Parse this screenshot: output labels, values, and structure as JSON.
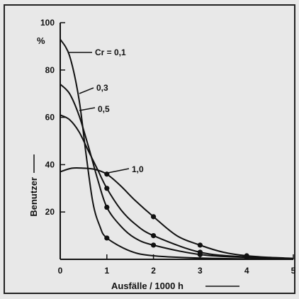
{
  "chart_data": {
    "type": "line",
    "xlabel": "Ausfälle / 1000 h",
    "ylabel": "Benutzer",
    "yunit": "%",
    "xlim": [
      0,
      5
    ],
    "ylim": [
      0,
      100
    ],
    "x_ticks": [
      "0",
      "1",
      "2",
      "3",
      "4",
      "5"
    ],
    "y_ticks": [
      "20",
      "40",
      "60",
      "80",
      "100"
    ],
    "grid": false,
    "series": [
      {
        "name": "Cr = 0,1",
        "label_text": "Cr = 0,1",
        "x": [
          0,
          0.2,
          0.4,
          0.55,
          0.7,
          0.85,
          1.0,
          1.5,
          2.0,
          3.0,
          4.0,
          5.0
        ],
        "y": [
          93,
          86,
          68,
          45,
          24,
          14,
          9,
          3.5,
          1.5,
          0.5,
          0.2,
          0.1
        ],
        "markers": [
          [
            1.0,
            9
          ]
        ]
      },
      {
        "name": "0,3",
        "label_text": "0,3",
        "x": [
          0,
          0.2,
          0.4,
          0.6,
          0.8,
          1.0,
          1.3,
          1.6,
          2.0,
          3.0,
          4.0,
          5.0
        ],
        "y": [
          74,
          70,
          61,
          48,
          34,
          22,
          14,
          9,
          6,
          2,
          0.8,
          0.3
        ],
        "markers": [
          [
            1.0,
            22
          ],
          [
            2.0,
            6
          ],
          [
            3.0,
            2
          ]
        ]
      },
      {
        "name": "0,5",
        "label_text": "0,5",
        "x": [
          0,
          0.2,
          0.4,
          0.6,
          0.8,
          1.0,
          1.3,
          1.6,
          2.0,
          3.0,
          4.0,
          5.0
        ],
        "y": [
          61,
          59,
          54,
          46,
          38,
          30,
          21,
          15,
          10,
          3,
          1,
          0.3
        ],
        "markers": [
          [
            1.0,
            30
          ],
          [
            2.0,
            10
          ],
          [
            3.0,
            3
          ],
          [
            4.0,
            1
          ]
        ]
      },
      {
        "name": "1,0",
        "label_text": "1,0",
        "x": [
          0,
          0.25,
          0.5,
          0.75,
          1.0,
          1.3,
          1.6,
          2.0,
          2.5,
          3.0,
          3.5,
          4.0,
          4.5,
          5.0
        ],
        "y": [
          37,
          38.5,
          38.5,
          38,
          36,
          31,
          25,
          18,
          10,
          6,
          3,
          1.5,
          0.8,
          0.4
        ],
        "markers": [
          [
            1.0,
            36
          ],
          [
            2.0,
            18
          ],
          [
            3.0,
            6
          ],
          [
            4.0,
            1.5
          ]
        ]
      }
    ]
  }
}
